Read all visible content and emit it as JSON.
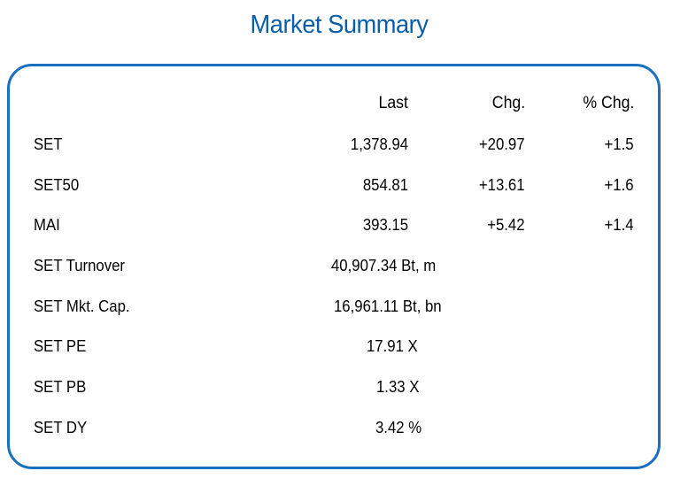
{
  "title": "Market Summary",
  "headers": {
    "last": "Last",
    "chg": "Chg.",
    "pct_chg": "% Chg."
  },
  "rows": [
    {
      "label": "SET",
      "last": "1,378.94",
      "chg": "+20.97",
      "pct": "+1.5"
    },
    {
      "label": "SET50",
      "last": "854.81",
      "chg": "+13.61",
      "pct": "+1.6"
    },
    {
      "label": "MAI",
      "last": "393.15",
      "chg": "+5.42",
      "pct": "+1.4"
    },
    {
      "label": "SET Turnover",
      "value": "40,907.34 Bt, m"
    },
    {
      "label": "SET Mkt. Cap.",
      "value": "16,961.11 Bt, bn"
    },
    {
      "label": "SET PE",
      "value": "17.91 X"
    },
    {
      "label": "SET PB",
      "value": "1.33 X"
    },
    {
      "label": "SET DY",
      "value": "3.42 %"
    }
  ],
  "colors": {
    "title": "#0a5ea8",
    "border": "#1a6fbf",
    "text": "#000000"
  }
}
